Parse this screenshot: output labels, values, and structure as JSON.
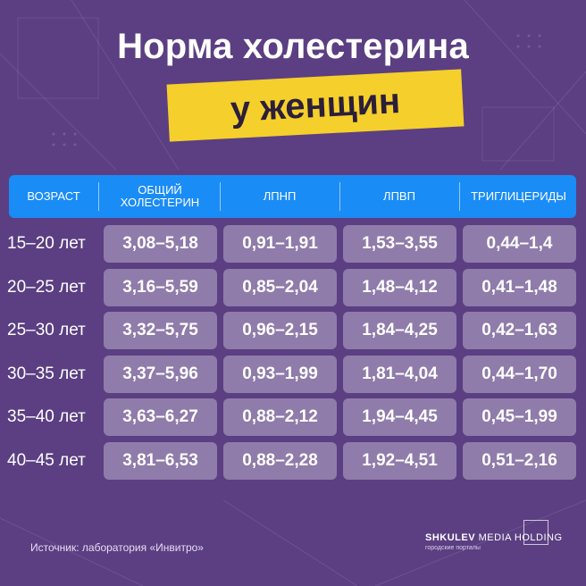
{
  "title": "Норма холестерина",
  "subtitle": "у женщин",
  "columns": [
    "ВОЗРАСТ",
    "ОБЩИЙ ХОЛЕСТЕРИН",
    "ЛПНП",
    "ЛПВП",
    "ТРИГЛИЦЕРИДЫ"
  ],
  "chart_data": {
    "type": "table",
    "title": "Норма холестерина у женщин",
    "columns": [
      "ВОЗРАСТ",
      "ОБЩИЙ ХОЛЕСТЕРИН",
      "ЛПНП",
      "ЛПВП",
      "ТРИГЛИЦЕРИДЫ"
    ],
    "rows": [
      {
        "age": "15–20 лет",
        "values": [
          "3,08–5,18",
          "0,91–1,91",
          "1,53–3,55",
          "0,44–1,4"
        ]
      },
      {
        "age": "20–25 лет",
        "values": [
          "3,16–5,59",
          "0,85–2,04",
          "1,48–4,12",
          "0,41–1,48"
        ]
      },
      {
        "age": "25–30 лет",
        "values": [
          "3,32–5,75",
          "0,96–2,15",
          "1,84–4,25",
          "0,42–1,63"
        ]
      },
      {
        "age": "30–35 лет",
        "values": [
          "3,37–5,96",
          "0,93–1,99",
          "1,81–4,04",
          "0,44–1,70"
        ]
      },
      {
        "age": "35–40 лет",
        "values": [
          "3,63–6,27",
          "0,88–2,12",
          "1,94–4,45",
          "0,45–1,99"
        ]
      },
      {
        "age": "40–45 лет",
        "values": [
          "3,81–6,53",
          "0,88–2,28",
          "1,92–4,51",
          "0,51–2,16"
        ]
      }
    ]
  },
  "source": "Источник: лаборатория «Инвитро»",
  "logo": {
    "brand": "SHKULEV",
    "suffix": "MEDIA HOLDING",
    "tagline": "городские порталы"
  },
  "colors": {
    "background": "#5b3f82",
    "header": "#1a8cf5",
    "highlight": "#f5cf2b"
  }
}
